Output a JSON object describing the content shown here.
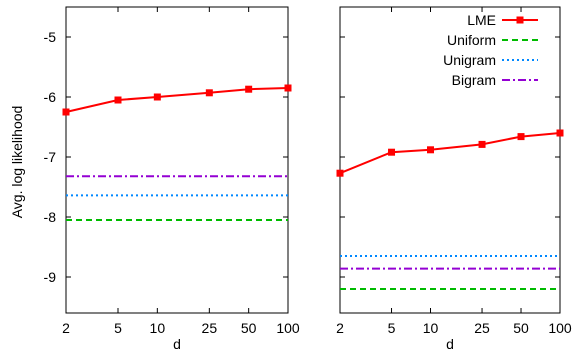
{
  "chart_data": [
    {
      "type": "line",
      "ylabel": "Avg. log likelihood",
      "xlabel": "d",
      "x_scale": "log",
      "x": [
        2,
        5,
        10,
        25,
        50,
        100
      ],
      "x_tick_labels": [
        "2",
        "5",
        "10",
        "25",
        "50",
        "100"
      ],
      "ylim": [
        -9.6,
        -4.5
      ],
      "y_ticks": [
        -9,
        -8,
        -7,
        -6,
        -5
      ],
      "y_tick_labels": [
        "-9",
        "-8",
        "-7",
        "-6",
        "-5"
      ],
      "grid": false,
      "series": [
        {
          "name": "LME",
          "values": [
            -6.25,
            -6.05,
            -6.0,
            -5.93,
            -5.87,
            -5.85
          ],
          "color": "#ff0000",
          "style": "solid-markers"
        },
        {
          "name": "Uniform",
          "values": [
            -8.05,
            -8.05,
            -8.05,
            -8.05,
            -8.05,
            -8.05
          ],
          "color": "#00bb00",
          "style": "dashed"
        },
        {
          "name": "Unigram",
          "values": [
            -7.64,
            -7.64,
            -7.64,
            -7.64,
            -7.64,
            -7.64
          ],
          "color": "#0088ff",
          "style": "dotted"
        },
        {
          "name": "Bigram",
          "values": [
            -7.32,
            -7.32,
            -7.32,
            -7.32,
            -7.32,
            -7.32
          ],
          "color": "#9400d3",
          "style": "dash-dot"
        }
      ]
    },
    {
      "type": "line",
      "xlabel": "d",
      "x_scale": "log",
      "x": [
        2,
        5,
        10,
        25,
        50,
        100
      ],
      "x_tick_labels": [
        "2",
        "5",
        "10",
        "25",
        "50",
        "100"
      ],
      "ylim": [
        -9.6,
        -4.5
      ],
      "y_ticks": [
        -9,
        -8,
        -7,
        -6,
        -5
      ],
      "grid": false,
      "legend_position": "top-right",
      "series": [
        {
          "name": "LME",
          "values": [
            -7.27,
            -6.92,
            -6.88,
            -6.79,
            -6.66,
            -6.6
          ],
          "color": "#ff0000",
          "style": "solid-markers"
        },
        {
          "name": "Uniform",
          "values": [
            -9.2,
            -9.2,
            -9.2,
            -9.2,
            -9.2,
            -9.2
          ],
          "color": "#00bb00",
          "style": "dashed"
        },
        {
          "name": "Unigram",
          "values": [
            -8.65,
            -8.65,
            -8.65,
            -8.65,
            -8.65,
            -8.65
          ],
          "color": "#0088ff",
          "style": "dotted"
        },
        {
          "name": "Bigram",
          "values": [
            -8.86,
            -8.86,
            -8.86,
            -8.86,
            -8.86,
            -8.86
          ],
          "color": "#9400d3",
          "style": "dash-dot"
        }
      ]
    }
  ]
}
